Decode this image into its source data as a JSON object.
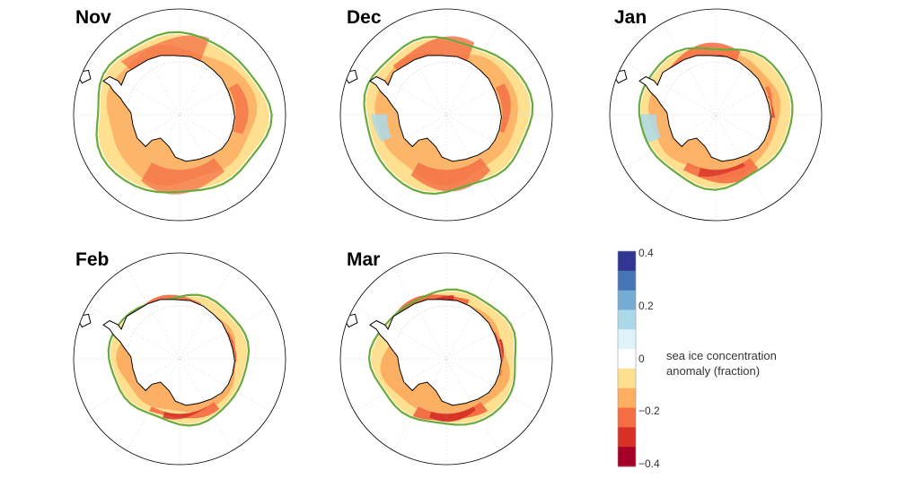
{
  "panels": [
    {
      "label": "Nov",
      "edge": 1.0,
      "intensity": 0.45,
      "blue": false
    },
    {
      "label": "Dec",
      "edge": 0.96,
      "intensity": 0.6,
      "blue": true
    },
    {
      "label": "Jan",
      "edge": 0.88,
      "intensity": 0.75,
      "blue": true
    },
    {
      "label": "Feb",
      "edge": 0.8,
      "intensity": 0.85,
      "blue": false
    },
    {
      "label": "Mar",
      "edge": 0.84,
      "intensity": 0.95,
      "blue": false
    }
  ],
  "colorbar": {
    "caption_line1": "sea ice concentration",
    "caption_line2": "anomaly (fraction)",
    "ticks": [
      "0.4",
      "0.2",
      "0",
      "−0.2",
      "−0.4"
    ],
    "colors": [
      "#313695",
      "#4575b4",
      "#74add1",
      "#abd9e9",
      "#e0f3f8",
      "#ffffff",
      "#fee090",
      "#fdae61",
      "#f46d43",
      "#d73027",
      "#a50026"
    ]
  },
  "colors": {
    "ice_edge": "#6aaa3a",
    "coast": "#000000",
    "graticule": "#bbbbbb"
  }
}
